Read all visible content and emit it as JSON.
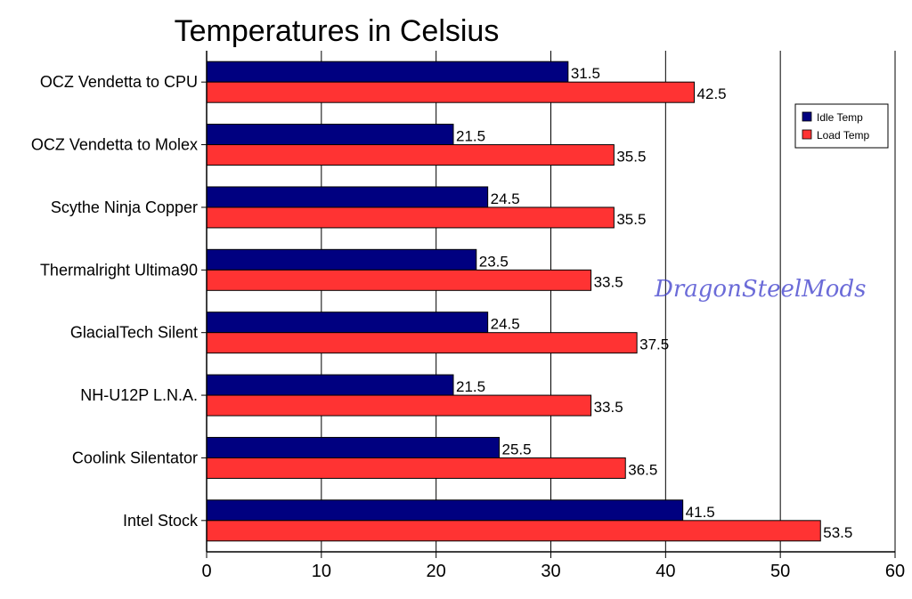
{
  "chart_data": {
    "type": "bar",
    "orientation": "horizontal",
    "title": "Temperatures in Celsius",
    "xlabel": "",
    "ylabel": "",
    "categories": [
      "OCZ Vendetta to CPU",
      "OCZ Vendetta to Molex",
      "Scythe Ninja Copper",
      "Thermalright Ultima90",
      "GlacialTech Silent",
      "NH-U12P L.N.A.",
      "Coolink Silentator",
      "Intel Stock"
    ],
    "series": [
      {
        "name": "Idle Temp",
        "color": "#000080",
        "values": [
          31.5,
          21.5,
          24.5,
          23.5,
          24.5,
          21.5,
          25.5,
          41.5
        ]
      },
      {
        "name": "Load Temp",
        "color": "#ff3333",
        "values": [
          42.5,
          35.5,
          35.5,
          33.5,
          37.5,
          33.5,
          36.5,
          53.5
        ]
      }
    ],
    "xlim": [
      0,
      60
    ],
    "xticks": [
      0,
      10,
      20,
      30,
      40,
      50,
      60
    ],
    "grid": "vertical",
    "legend_position": "top-right",
    "watermark": "DragonSteelMods"
  }
}
